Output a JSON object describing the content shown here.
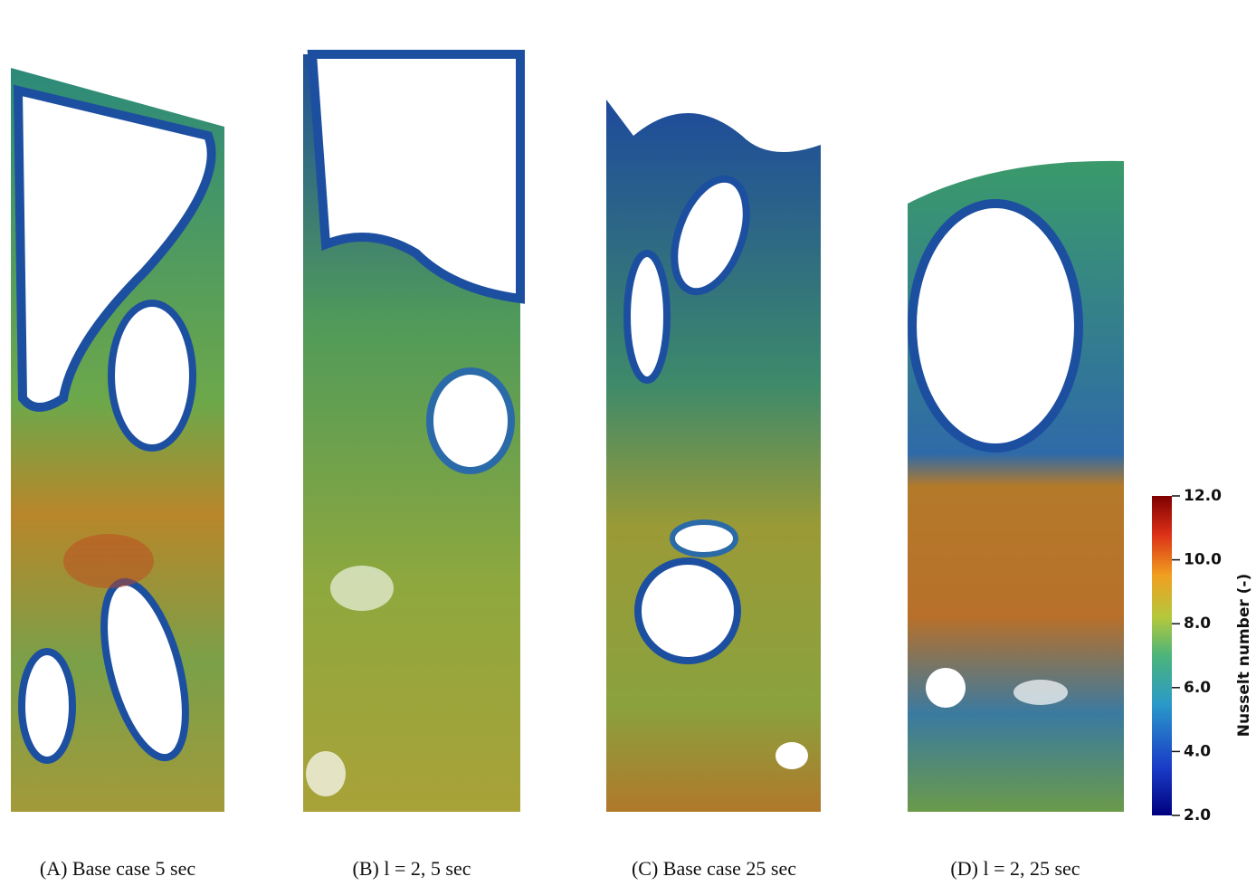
{
  "panels": [
    {
      "caption": "(A) Base case 5 sec"
    },
    {
      "caption": "(B) l = 2, 5 sec"
    },
    {
      "caption": "(C) Base case 25 sec"
    },
    {
      "caption": "(D) l = 2, 25 sec"
    }
  ],
  "colorbar": {
    "label": "Nusselt number (-)",
    "range": [
      2,
      12
    ],
    "ticks": [
      {
        "value": 2,
        "label": "2.0"
      },
      {
        "value": 4,
        "label": "4.0"
      },
      {
        "value": 6,
        "label": "6.0"
      },
      {
        "value": 8,
        "label": "8.0"
      },
      {
        "value": 10,
        "label": "10.0"
      },
      {
        "value": 12,
        "label": "12.0"
      }
    ]
  }
}
